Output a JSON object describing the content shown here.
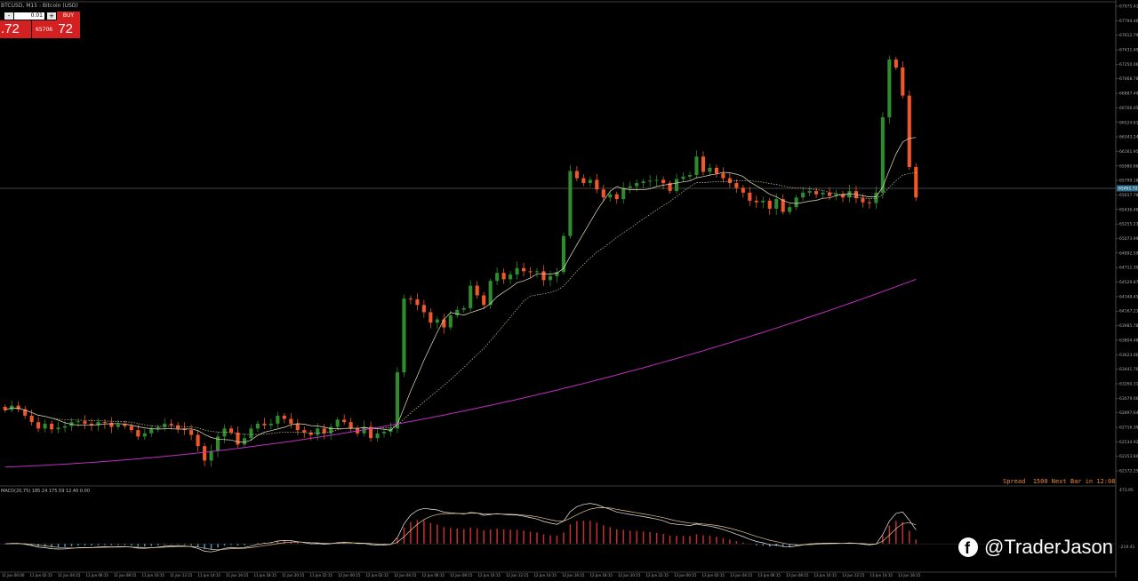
{
  "window": {
    "title": "BTCUSD, M15 : Bitcoin (USD)"
  },
  "trade_panel": {
    "minus_label": "-",
    "lot_value": "0.01",
    "plus_label": "+",
    "buy_label": "BUY",
    "sell_price_big": ".72",
    "buy_price_small": "65706",
    "buy_price_big": "72"
  },
  "status": {
    "spread_info": "Spread  1500 Next Bar in 12:08"
  },
  "macd_panel": {
    "title": "MACD(20,75) 185.24 175.59 12.40 0.00"
  },
  "watermark": {
    "text": "@TraderJason",
    "icon": "facebook-icon"
  },
  "price_axis": {
    "labels": [
      "67975.41",
      "67794.46",
      "67612.79",
      "67431.49",
      "67250.06",
      "67068.78",
      "66887.49",
      "66706.05",
      "66524.61",
      "66343.24",
      "66161.95",
      "65980.66",
      "65799.18",
      "65617.78",
      "65436.46",
      "65255.23",
      "65073.99",
      "64892.59",
      "64711.30",
      "64529.87",
      "64348.45",
      "64167.23",
      "63985.78",
      "63804.48",
      "63623.06",
      "63441.76",
      "63260.31",
      "63079.06",
      "62897.64",
      "62716.39",
      "62534.92",
      "62353.60",
      "62172.25"
    ],
    "current_price": "65461.72",
    "macd_high": "473.95",
    "macd_low": "-219.41"
  },
  "time_axis": {
    "labels": [
      "11 Jun 00:00",
      "11 Jun 02:15",
      "11 Jun 04:15",
      "11 Jun 06:15",
      "11 Jun 08:15",
      "11 Jun 10:15",
      "11 Jun 12:15",
      "11 Jun 14:15",
      "11 Jun 16:15",
      "11 Jun 18:15",
      "11 Jun 20:15",
      "11 Jun 22:15",
      "12 Jun 00:15",
      "12 Jun 02:15",
      "12 Jun 04:15",
      "12 Jun 06:15",
      "12 Jun 08:15",
      "12 Jun 10:15",
      "12 Jun 12:15",
      "12 Jun 14:15",
      "12 Jun 16:15",
      "12 Jun 18:15",
      "12 Jun 20:15",
      "12 Jun 22:15",
      "13 Jun 00:15",
      "13 Jun 02:15",
      "13 Jun 04:15",
      "13 Jun 06:15",
      "13 Jun 08:15",
      "13 Jun 10:15",
      "13 Jun 12:15",
      "13 Jun 14:15",
      "13 Jun 16:15"
    ]
  },
  "colors": {
    "bull": "#2e8b2e",
    "bear": "#f0572b",
    "ma_fast": "#e8e0c0",
    "ma_slow": "#c8c8a0",
    "ma_long": "#c02ec0",
    "grid_line": "#888888"
  },
  "chart_data": {
    "type": "candlestick",
    "closes": [
      62930,
      62985,
      62940,
      62860,
      62780,
      62700,
      62760,
      62690,
      62710,
      62730,
      62780,
      62790,
      62760,
      62740,
      62780,
      62770,
      62720,
      62750,
      62730,
      62680,
      62600,
      62640,
      62700,
      62720,
      62760,
      62740,
      62700,
      62680,
      62620,
      62480,
      62300,
      62420,
      62600,
      62700,
      62650,
      62500,
      62580,
      62700,
      62760,
      62740,
      62760,
      62860,
      62820,
      62760,
      62680,
      62650,
      62620,
      62700,
      62640,
      62720,
      62810,
      62780,
      62700,
      62640,
      62720,
      62580,
      62640,
      62660,
      62700,
      63400,
      64320,
      64310,
      64240,
      64150,
      64020,
      64060,
      63960,
      64110,
      64180,
      64200,
      64480,
      64360,
      64240,
      64540,
      64640,
      64560,
      64620,
      64700,
      64660,
      64650,
      64660,
      64550,
      64600,
      64650,
      65100,
      65910,
      65820,
      65760,
      65800,
      65680,
      65580,
      65620,
      65560,
      65700,
      65720,
      65760,
      65780,
      65790,
      65800,
      65760,
      65660,
      65810,
      65840,
      65860,
      66090,
      65900,
      65950,
      65880,
      65820,
      65760,
      65700,
      65640,
      65540,
      65520,
      65540,
      65440,
      65560,
      65400,
      65460,
      65580,
      65640,
      65660,
      65620,
      65640,
      65600,
      65620,
      65580,
      65660,
      65570,
      65520,
      65510,
      65640,
      66580,
      67300,
      67200,
      66850,
      65960,
      65580
    ],
    "ma_long_end": 64560,
    "ylim": [
      62172.25,
      67975.41
    ],
    "macd": {
      "ylim": [
        -219.41,
        473.95
      ]
    }
  }
}
